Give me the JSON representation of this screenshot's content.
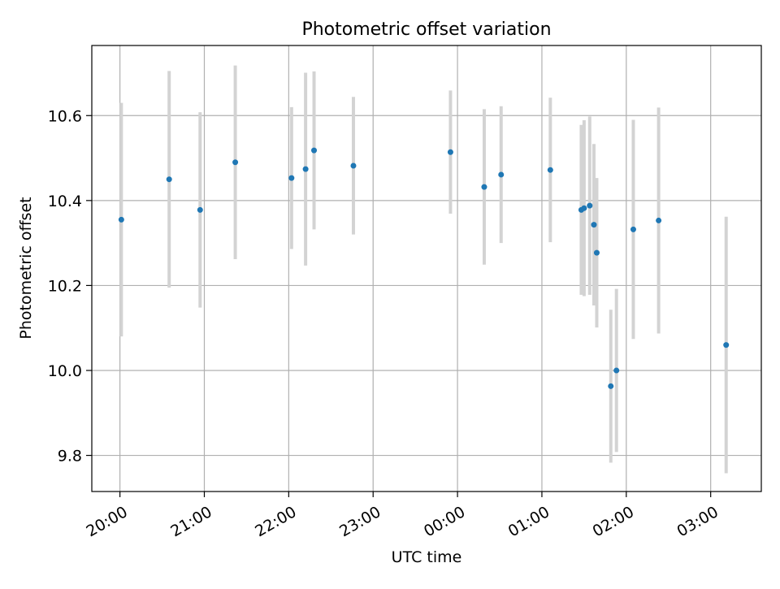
{
  "chart_data": {
    "type": "scatter",
    "title": "Photometric offset variation",
    "xlabel": "UTC time",
    "ylabel": "Photometric offset",
    "xlim": [
      "19:40",
      "03:36"
    ],
    "ylim": [
      9.715,
      10.765
    ],
    "grid": true,
    "x_ticks": [
      "20:00",
      "21:00",
      "22:00",
      "23:00",
      "00:00",
      "01:00",
      "02:00",
      "03:00"
    ],
    "y_ticks": [
      "9.8",
      "10.0",
      "10.2",
      "10.4",
      "10.6"
    ],
    "colors": {
      "point": "#1f77b4",
      "errorbar": "#d3d3d3",
      "grid": "#b0b0b0"
    },
    "series": [
      {
        "points": [
          {
            "time": "20:01",
            "y": 10.355,
            "yerr": 0.275
          },
          {
            "time": "20:35",
            "y": 10.45,
            "yerr": 0.255
          },
          {
            "time": "20:57",
            "y": 10.378,
            "yerr": 0.23
          },
          {
            "time": "21:22",
            "y": 10.49,
            "yerr": 0.228
          },
          {
            "time": "22:02",
            "y": 10.453,
            "yerr": 0.167
          },
          {
            "time": "22:12",
            "y": 10.474,
            "yerr": 0.227
          },
          {
            "time": "22:18",
            "y": 10.518,
            "yerr": 0.186
          },
          {
            "time": "22:46",
            "y": 10.482,
            "yerr": 0.162
          },
          {
            "time": "23:55",
            "y": 10.514,
            "yerr": 0.145
          },
          {
            "time": "00:19",
            "y": 10.432,
            "yerr": 0.183
          },
          {
            "time": "00:31",
            "y": 10.461,
            "yerr": 0.161
          },
          {
            "time": "01:06",
            "y": 10.472,
            "yerr": 0.17
          },
          {
            "time": "01:28",
            "y": 10.378,
            "yerr": 0.2
          },
          {
            "time": "01:30",
            "y": 10.382,
            "yerr": 0.207
          },
          {
            "time": "01:34",
            "y": 10.388,
            "yerr": 0.21
          },
          {
            "time": "01:37",
            "y": 10.343,
            "yerr": 0.19
          },
          {
            "time": "01:39",
            "y": 10.277,
            "yerr": 0.176
          },
          {
            "time": "01:49",
            "y": 9.963,
            "yerr": 0.18
          },
          {
            "time": "01:53",
            "y": 10.0,
            "yerr": 0.192
          },
          {
            "time": "02:05",
            "y": 10.332,
            "yerr": 0.258
          },
          {
            "time": "02:23",
            "y": 10.353,
            "yerr": 0.266
          },
          {
            "time": "03:11",
            "y": 10.06,
            "yerr": 0.302
          }
        ]
      }
    ]
  }
}
